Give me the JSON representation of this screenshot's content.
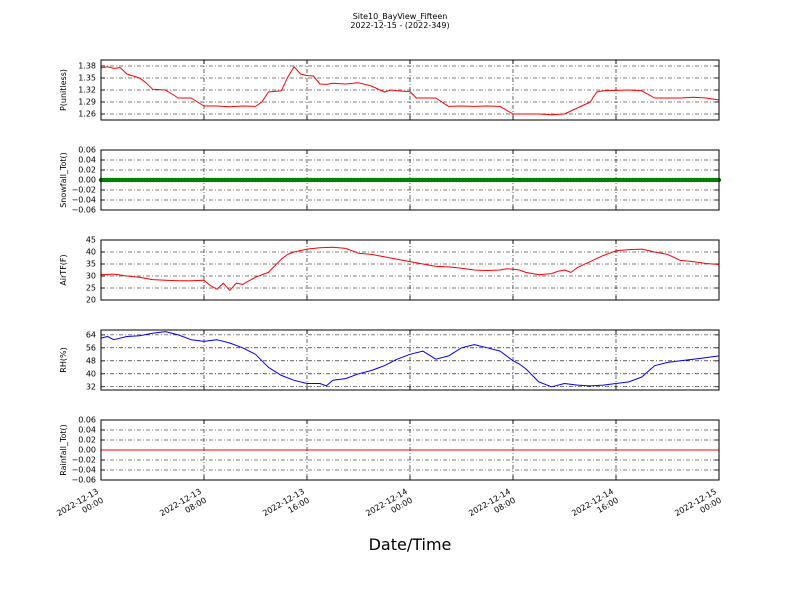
{
  "chart_data": {
    "type": "line",
    "title": "Site10_BayView_Fifteen",
    "subtitle": "2022-12-15 - (2022-349)",
    "xlabel": "Date/Time",
    "x_ticks": [
      [
        "2022-12-13",
        "00:00"
      ],
      [
        "2022-12-13",
        "08:00"
      ],
      [
        "2022-12-13",
        "16:00"
      ],
      [
        "2022-12-14",
        "00:00"
      ],
      [
        "2022-12-14",
        "08:00"
      ],
      [
        "2022-12-14",
        "16:00"
      ],
      [
        "2022-12-15",
        "00:00"
      ]
    ],
    "x_range_hours": [
      0,
      48
    ],
    "grid": true,
    "panels": [
      {
        "ylabel": "P(unitless)",
        "ylim": [
          1.245,
          1.395
        ],
        "yticks": [
          "1.38",
          "1.35",
          "1.32",
          "1.29",
          "1.26"
        ],
        "ytick_values": [
          1.38,
          1.35,
          1.32,
          1.29,
          1.26
        ],
        "color": "#ff0000",
        "series": {
          "x": [
            0,
            0.5,
            1,
            1.5,
            2,
            3,
            3.5,
            4,
            5,
            6,
            7,
            8,
            9,
            10,
            11,
            12,
            12.5,
            13,
            14,
            14.5,
            15,
            15.5,
            16,
            16.5,
            17,
            17.5,
            18,
            19,
            20,
            21,
            22,
            22.5,
            23,
            24,
            24.5,
            25,
            26,
            27,
            28,
            29,
            30,
            31,
            32,
            33,
            34,
            35,
            36,
            37,
            38,
            38.5,
            39,
            40,
            41,
            42,
            43,
            44,
            45,
            46,
            47,
            48
          ],
          "y": [
            1.375,
            1.378,
            1.374,
            1.376,
            1.36,
            1.35,
            1.338,
            1.322,
            1.32,
            1.3,
            1.3,
            1.28,
            1.28,
            1.278,
            1.28,
            1.279,
            1.29,
            1.315,
            1.318,
            1.352,
            1.378,
            1.36,
            1.356,
            1.355,
            1.335,
            1.334,
            1.337,
            1.335,
            1.338,
            1.33,
            1.315,
            1.32,
            1.318,
            1.316,
            1.3,
            1.3,
            1.3,
            1.279,
            1.28,
            1.279,
            1.28,
            1.279,
            1.26,
            1.26,
            1.26,
            1.258,
            1.26,
            1.275,
            1.29,
            1.315,
            1.318,
            1.319,
            1.32,
            1.318,
            1.3,
            1.3,
            1.3,
            1.302,
            1.3,
            1.295
          ]
        }
      },
      {
        "ylabel": "Snowfall_Tot()",
        "ylim": [
          -0.06,
          0.06
        ],
        "yticks": [
          "0.06",
          "0.04",
          "0.02",
          "0.00",
          "−0.02",
          "−0.04",
          "−0.06"
        ],
        "ytick_values": [
          0.06,
          0.04,
          0.02,
          0.0,
          -0.02,
          -0.04,
          -0.06
        ],
        "color": "#008000",
        "marker": true,
        "series": {
          "x": [
            0,
            48
          ],
          "y": [
            0,
            0
          ]
        }
      },
      {
        "ylabel": "AirTF(F)",
        "ylim": [
          20,
          45
        ],
        "yticks": [
          "45",
          "40",
          "35",
          "30",
          "25",
          "20"
        ],
        "ytick_values": [
          45,
          40,
          35,
          30,
          25,
          20
        ],
        "color": "#ff0000",
        "series": {
          "x": [
            0,
            1,
            2,
            3,
            4,
            5,
            6,
            7,
            8,
            8.5,
            9,
            9.5,
            10,
            10.5,
            11,
            12,
            13,
            14,
            14.5,
            15,
            16,
            17,
            18,
            19,
            20,
            21,
            22,
            23,
            24,
            25,
            26,
            27,
            28,
            29,
            30,
            31,
            31.5,
            32,
            32.5,
            33,
            34,
            35,
            35.5,
            36,
            36.5,
            37,
            38,
            39,
            40,
            41,
            42,
            43,
            44,
            45,
            46,
            47,
            48
          ],
          "y": [
            30.5,
            30.8,
            30,
            29.5,
            28.5,
            28.2,
            28,
            28,
            28.2,
            26,
            24.5,
            27,
            24,
            27,
            26.5,
            29.5,
            31.5,
            37,
            39,
            40,
            41.2,
            41.8,
            42,
            41.5,
            39.5,
            39,
            38,
            37,
            36,
            35,
            34,
            33.8,
            33.2,
            32.5,
            32.3,
            32.5,
            33,
            32.8,
            32.5,
            31.5,
            30.5,
            31,
            32,
            32.5,
            31.5,
            33.5,
            36,
            38.5,
            40.5,
            41,
            41.2,
            40,
            39,
            36.5,
            36,
            35.2,
            34.8
          ]
        }
      },
      {
        "ylabel": "RH(%)",
        "ylim": [
          30,
          67
        ],
        "yticks": [
          "64",
          "56",
          "48",
          "40",
          "32"
        ],
        "ytick_values": [
          64,
          56,
          48,
          40,
          32
        ],
        "color": "#0000ff",
        "series": {
          "x": [
            0,
            0.5,
            1,
            2,
            3,
            4,
            5,
            6,
            7,
            8,
            9,
            10,
            11,
            12,
            13,
            14,
            15,
            16,
            17,
            17.5,
            18,
            19,
            20,
            21,
            22,
            23,
            24,
            25,
            26,
            27,
            28,
            29,
            30,
            31,
            32,
            32.5,
            33,
            34,
            35,
            36,
            37,
            38,
            39,
            40,
            41,
            42,
            43,
            44,
            45,
            46,
            47,
            48
          ],
          "y": [
            62,
            63,
            61,
            63,
            63.5,
            65,
            66,
            64,
            61,
            60,
            61,
            59,
            56,
            52,
            44,
            39,
            36,
            34,
            34,
            32.5,
            36,
            37,
            40,
            42,
            45,
            49,
            52,
            54,
            49,
            51,
            56,
            58,
            56,
            54,
            48,
            46,
            43,
            35,
            32,
            34,
            33,
            32.5,
            33,
            34,
            35,
            38,
            45,
            47,
            48,
            49,
            50,
            51
          ]
        }
      },
      {
        "ylabel": "Rainfall_Tot()",
        "ylim": [
          -0.06,
          0.06
        ],
        "yticks": [
          "0.06",
          "0.04",
          "0.02",
          "0.00",
          "−0.02",
          "−0.04",
          "−0.06"
        ],
        "ytick_values": [
          0.06,
          0.04,
          0.02,
          0.0,
          -0.02,
          -0.04,
          -0.06
        ],
        "color": "#ff0000",
        "series": {
          "x": [
            0,
            48
          ],
          "y": [
            0,
            0
          ]
        }
      }
    ]
  }
}
